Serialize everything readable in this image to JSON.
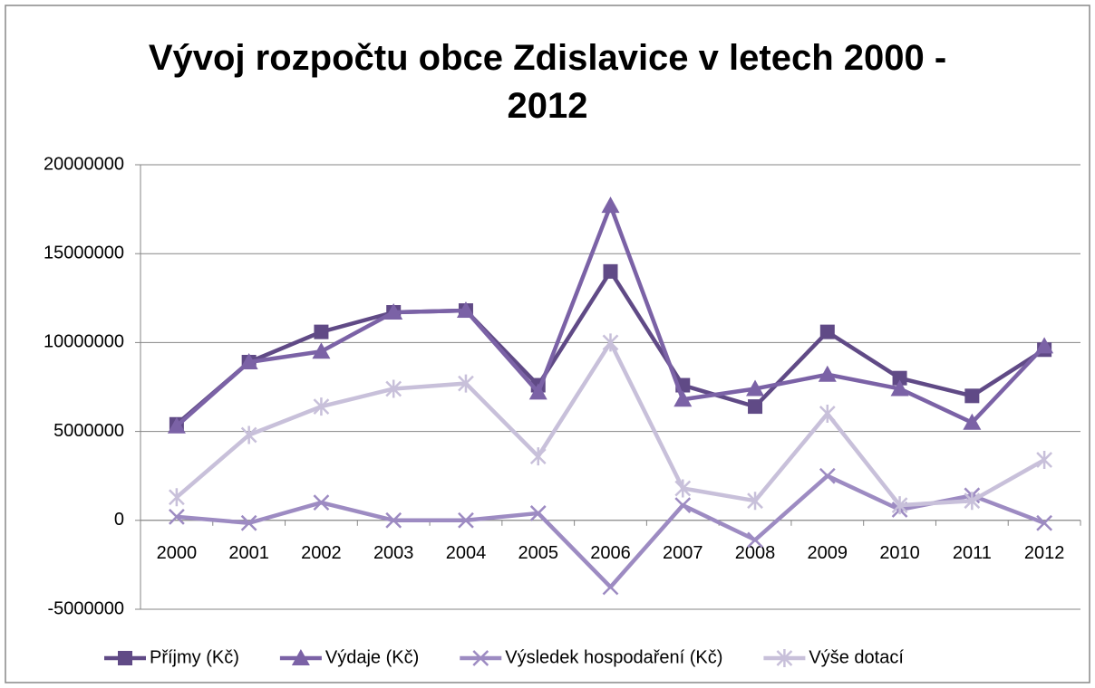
{
  "chart_data": {
    "type": "line",
    "title": "Vývoj rozpočtu obce Zdislavice v letech 2000 - 2012",
    "categories": [
      "2000",
      "2001",
      "2002",
      "2003",
      "2004",
      "2005",
      "2006",
      "2007",
      "2008",
      "2009",
      "2010",
      "2011",
      "2012"
    ],
    "series": [
      {
        "name": "Příjmy (Kč)",
        "color": "#604a86",
        "marker": "square",
        "values": [
          5400000,
          8900000,
          10600000,
          11700000,
          11800000,
          7600000,
          14000000,
          7600000,
          6400000,
          10600000,
          8000000,
          7000000,
          9600000
        ]
      },
      {
        "name": "Výdaje (Kč)",
        "color": "#7b62a6",
        "marker": "triangle",
        "values": [
          5300000,
          8900000,
          9500000,
          11700000,
          11800000,
          7200000,
          17700000,
          6800000,
          7400000,
          8200000,
          7400000,
          5500000,
          9800000
        ]
      },
      {
        "name": "Výsledek hospodaření (Kč)",
        "color": "#9d8bc2",
        "marker": "x",
        "values": [
          200000,
          -150000,
          1000000,
          0,
          0,
          400000,
          -3750000,
          850000,
          -1100000,
          2500000,
          600000,
          1400000,
          -150000
        ]
      },
      {
        "name": "Výše dotací",
        "color": "#c8c0da",
        "marker": "star",
        "values": [
          1300000,
          4800000,
          6400000,
          7400000,
          7700000,
          3600000,
          10000000,
          1800000,
          1100000,
          6000000,
          850000,
          1100000,
          3400000
        ]
      }
    ],
    "ylim": [
      -5000000,
      20000000
    ],
    "yticks": [
      -5000000,
      0,
      5000000,
      10000000,
      15000000,
      20000000
    ],
    "grid": true,
    "legend": "bottom"
  }
}
